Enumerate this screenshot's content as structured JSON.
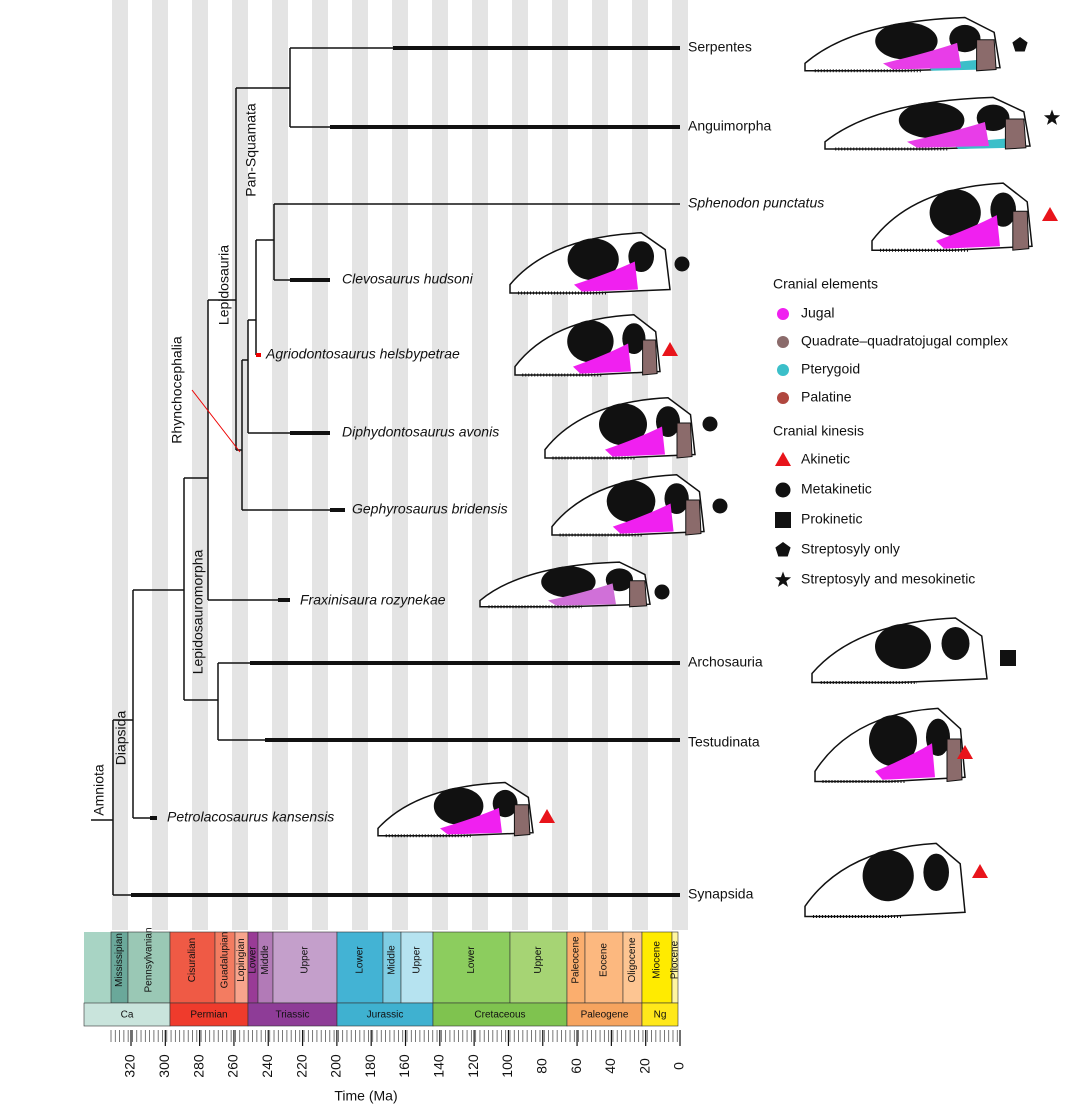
{
  "taxa": [
    "Serpentes",
    "Anguimorpha",
    "Sphenodon punctatus",
    "Clevosaurus hudsoni",
    "Agriodontosaurus helsbypetrae",
    "Diphydontosaurus avonis",
    "Gephyrosaurus bridensis",
    "Fraxinisaura rozynekae",
    "Archosauria",
    "Testudinata",
    "Petrolacosaurus kansensis",
    "Synapsida"
  ],
  "clades": [
    "Amniota",
    "Diapsida",
    "Lepidosauromorpha",
    "Rhynchocephalia",
    "Lepidosauria",
    "Pan-Squamata"
  ],
  "legend": {
    "elements_title": "Cranial elements",
    "elements": [
      "Jugal",
      "Quadrate–quadratojugal complex",
      "Pterygoid",
      "Palatine"
    ],
    "kinesis_title": "Cranial kinesis",
    "kinesis": [
      "Akinetic",
      "Metakinetic",
      "Prokinetic",
      "Streptosyly only",
      "Streptosyly and mesokinetic"
    ]
  },
  "timescale": {
    "epochs": [
      "Mississipian",
      "Pennsylvanian",
      "Cisuralian",
      "Guadalupian",
      "Lopingian",
      "Lower",
      "Middle",
      "Upper",
      "Lower",
      "Middle",
      "Upper",
      "Lower",
      "Upper",
      "Paleocene",
      "Eocene",
      "Oligocene",
      "Miocene",
      "Pliocene"
    ],
    "periods": [
      "Ca",
      "Permian",
      "Triassic",
      "Jurassic",
      "Cretaceous",
      "Paleogene",
      "Ng"
    ]
  },
  "axis": {
    "ticks": [
      320,
      300,
      280,
      260,
      240,
      220,
      200,
      180,
      160,
      140,
      120,
      100,
      80,
      60,
      40,
      20,
      0
    ],
    "title": "Time (Ma)"
  }
}
